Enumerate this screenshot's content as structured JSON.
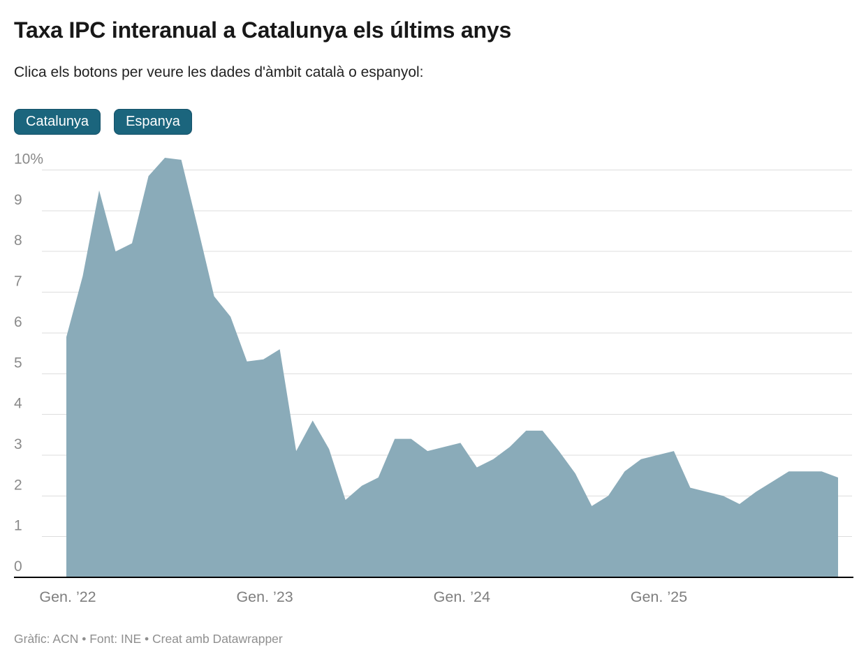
{
  "header": {
    "title": "Taxa IPC interanual a Catalunya els últims anys",
    "subtitle": "Clica els botons per veure les dades d'àmbit català o espanyol:",
    "buttons": [
      "Catalunya",
      "Espanya"
    ]
  },
  "colors": {
    "area": "#8aabb9",
    "button_bg": "#1b657d",
    "button_border": "#155169",
    "gridline": "#dddddd",
    "baseline": "#000000",
    "y_tick_text": "#8a8a8a",
    "x_tick_text": "#7e7e7e",
    "title_text": "#181818"
  },
  "chart_data": {
    "type": "area",
    "title": "Taxa IPC interanual a Catalunya els últims anys",
    "series_name": "Catalunya",
    "unit": "%",
    "x_start": "Gener 2022",
    "x_end": "Desembre 2025",
    "frequency": "monthly",
    "ylim": [
      0,
      10
    ],
    "grid": true,
    "y_ticks": [
      "10%",
      "9",
      "8",
      "7",
      "6",
      "5",
      "4",
      "3",
      "2",
      "1",
      "0"
    ],
    "x_tick_labels": [
      "Gen. ’22",
      "Gen. ’23",
      "Gen. ’24",
      "Gen. ’25"
    ],
    "x_tick_month_indexes": [
      0,
      12,
      24,
      36
    ],
    "values": {
      "2022": [
        5.9,
        7.4,
        9.5,
        8.0,
        8.2,
        9.85,
        10.3,
        10.25,
        8.6,
        6.9,
        6.4,
        5.3
      ],
      "2023": [
        5.35,
        5.6,
        3.1,
        3.85,
        3.15,
        1.9,
        2.25,
        2.45,
        3.4,
        3.4,
        3.1,
        3.2
      ],
      "2024": [
        3.3,
        2.7,
        2.9,
        3.2,
        3.6,
        3.6,
        3.1,
        2.55,
        1.75,
        2.0,
        2.6,
        2.9
      ],
      "2025": [
        3.0,
        3.1,
        2.2,
        2.1,
        2.0,
        1.8,
        2.1,
        2.35,
        2.6,
        2.6,
        2.6,
        2.45
      ]
    }
  },
  "footer": {
    "credit": "Gràfic: ACN • Font: INE • Creat amb Datawrapper"
  }
}
